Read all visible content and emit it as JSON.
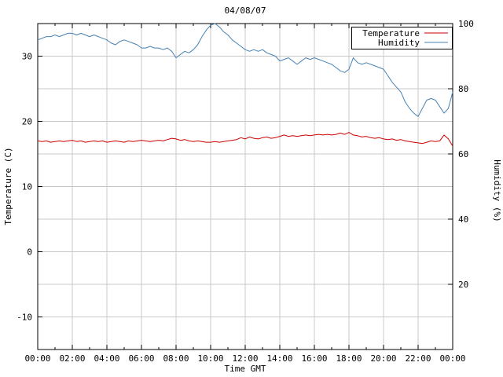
{
  "chart_data": {
    "type": "line",
    "title": "04/08/07",
    "xlabel": "Time GMT",
    "ylabel_left": "Temperature (C)",
    "ylabel_right": "Humidity (%)",
    "grid": true,
    "legend_position": "top-right",
    "x_range": [
      0,
      24
    ],
    "x_step_hours": 0.25,
    "y_left_range": [
      -15,
      35
    ],
    "y_right_range": [
      0,
      100
    ],
    "x_tick_hours": [
      0,
      2,
      4,
      6,
      8,
      10,
      12,
      14,
      16,
      18,
      20,
      22,
      24
    ],
    "x_tick_labels": [
      "00:00",
      "02:00",
      "04:00",
      "06:00",
      "08:00",
      "10:00",
      "12:00",
      "14:00",
      "16:00",
      "18:00",
      "20:00",
      "22:00",
      "00:00"
    ],
    "y_left_ticks": [
      -10,
      0,
      10,
      20,
      30
    ],
    "y_right_ticks": [
      20,
      40,
      60,
      80,
      100
    ],
    "series": [
      {
        "name": "Temperature",
        "axis": "left",
        "color": "#cc0000",
        "values": [
          17.0,
          16.9,
          17.0,
          16.8,
          16.9,
          17.0,
          16.9,
          17.0,
          17.1,
          16.9,
          17.0,
          16.8,
          16.9,
          17.0,
          16.9,
          17.0,
          16.8,
          16.9,
          17.0,
          16.9,
          16.8,
          17.0,
          16.9,
          17.0,
          17.1,
          17.0,
          16.9,
          17.0,
          17.1,
          17.0,
          17.2,
          17.4,
          17.3,
          17.1,
          17.2,
          17.0,
          16.9,
          17.0,
          16.9,
          16.8,
          16.8,
          16.9,
          16.8,
          16.9,
          17.0,
          17.1,
          17.2,
          17.5,
          17.3,
          17.6,
          17.4,
          17.3,
          17.5,
          17.6,
          17.4,
          17.5,
          17.7,
          17.9,
          17.7,
          17.8,
          17.7,
          17.8,
          17.9,
          17.8,
          17.9,
          18.0,
          17.9,
          18.0,
          17.9,
          18.0,
          18.2,
          18.0,
          18.3,
          17.9,
          17.8,
          17.6,
          17.7,
          17.5,
          17.4,
          17.5,
          17.3,
          17.2,
          17.3,
          17.1,
          17.2,
          17.0,
          16.9,
          16.8,
          16.7,
          16.6,
          16.8,
          17.0,
          16.9,
          17.0,
          17.9,
          17.3,
          16.2
        ]
      },
      {
        "name": "Humidity",
        "axis": "right",
        "color": "#4682b4",
        "values": [
          95,
          95.5,
          96,
          96,
          96.5,
          96,
          96.5,
          97,
          97,
          96.5,
          97,
          96.5,
          96,
          96.5,
          96,
          95.5,
          95,
          94,
          93.5,
          94.5,
          95,
          94.5,
          94,
          93.5,
          92.5,
          92.5,
          93,
          92.5,
          92.5,
          92,
          92.5,
          91.5,
          89.5,
          90.5,
          91.5,
          91,
          92,
          93.5,
          96,
          98,
          99.5,
          100,
          99,
          97.5,
          96.5,
          95,
          94,
          93,
          92,
          91.5,
          92,
          91.5,
          92,
          91,
          90.5,
          90,
          88.5,
          89,
          89.5,
          88.5,
          87.5,
          88.5,
          89.5,
          89,
          89.5,
          89,
          88.5,
          88,
          87.5,
          86.5,
          85.5,
          85,
          86,
          89.5,
          88,
          87.5,
          88,
          87.5,
          87,
          86.5,
          86,
          84,
          82,
          80.5,
          79,
          76,
          74,
          72.5,
          71.5,
          74,
          76.5,
          77,
          76.5,
          74.5,
          72.5,
          74,
          79
        ]
      }
    ]
  }
}
